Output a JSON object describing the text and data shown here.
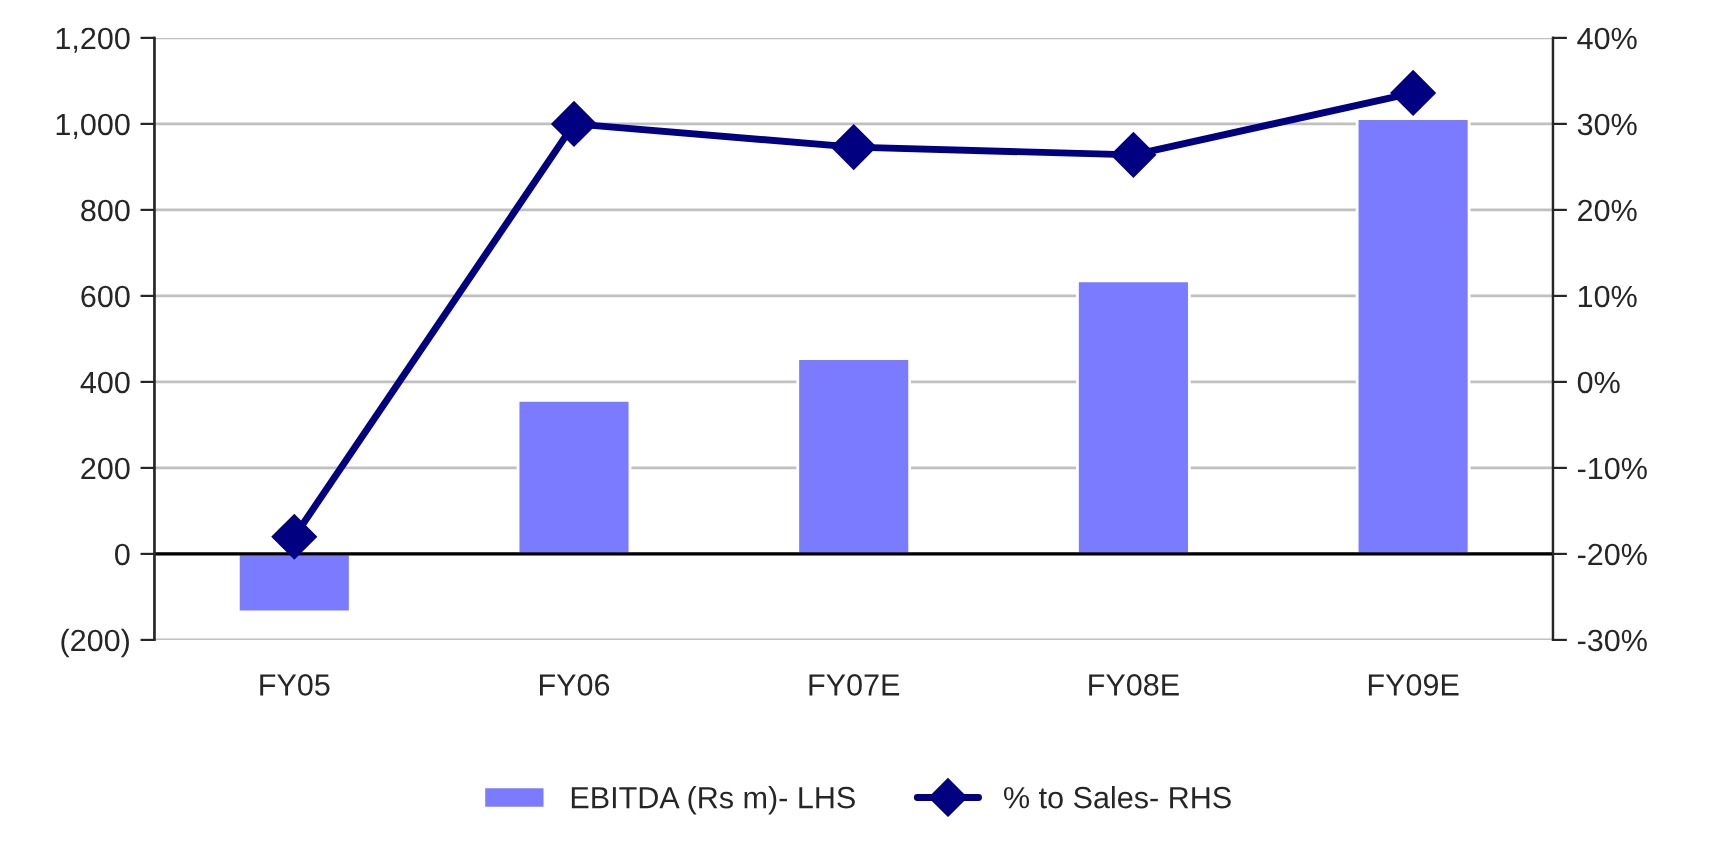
{
  "chart_data": {
    "type": "bar",
    "categories": [
      "FY05",
      "FY06",
      "FY07E",
      "FY08E",
      "FY09E"
    ],
    "series": [
      {
        "name": "EBITDA (Rs m)- LHS",
        "color": "#7b7bff",
        "values": [
          -135,
          357,
          454,
          635,
          1012
        ]
      },
      {
        "name": "% to Sales- RHS",
        "type": "line",
        "axis": "y2",
        "color": "#000080",
        "marker": "diamond",
        "values": [
          -18,
          30,
          27.3,
          26.4,
          33.6
        ]
      }
    ],
    "ylim": [
      -200,
      1200
    ],
    "yticks": [
      {
        "value": -200,
        "label": "(200)"
      },
      {
        "value": 0,
        "label": "0"
      },
      {
        "value": 200,
        "label": "200"
      },
      {
        "value": 400,
        "label": "400"
      },
      {
        "value": 600,
        "label": "600"
      },
      {
        "value": 800,
        "label": "800"
      },
      {
        "value": 1000,
        "label": "1,000"
      },
      {
        "value": 1200,
        "label": "1,200"
      }
    ],
    "y2lim": [
      -30,
      40
    ],
    "y2ticks": [
      {
        "value": -30,
        "label": "-30%"
      },
      {
        "value": -20,
        "label": "-20%"
      },
      {
        "value": -10,
        "label": "-10%"
      },
      {
        "value": 0,
        "label": "0%"
      },
      {
        "value": 10,
        "label": "10%"
      },
      {
        "value": 20,
        "label": "20%"
      },
      {
        "value": 30,
        "label": "30%"
      },
      {
        "value": 40,
        "label": "40%"
      }
    ],
    "grid": "y",
    "legend": "bottom"
  }
}
